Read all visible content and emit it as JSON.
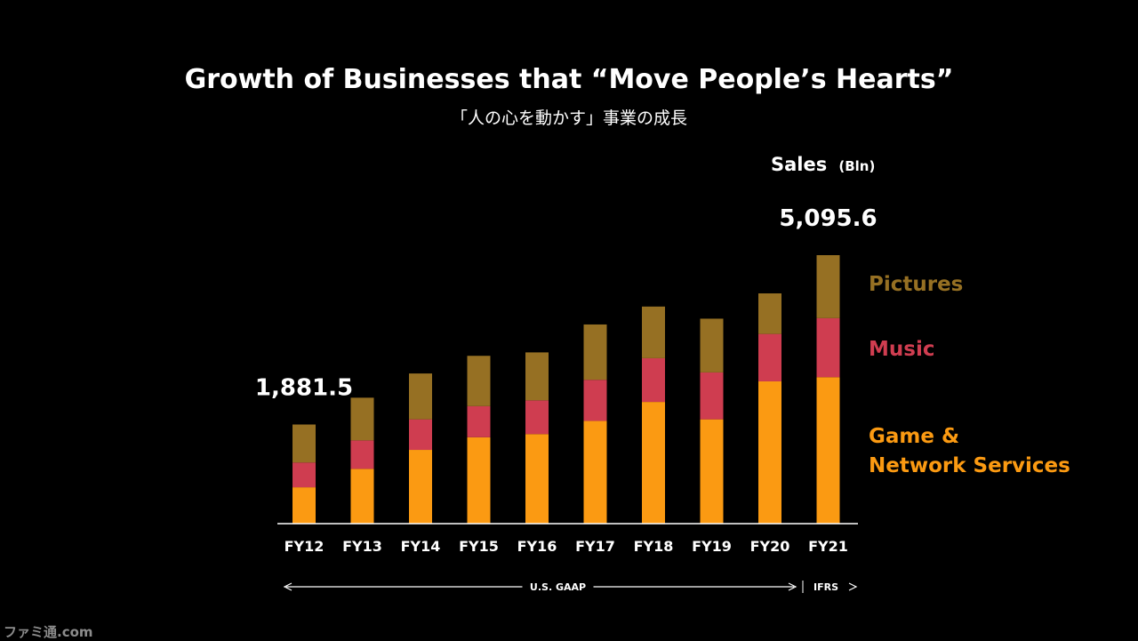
{
  "chart_data": {
    "type": "bar",
    "stacked": true,
    "title": "Growth of Businesses that “Move People’s Hearts”",
    "subtitle": "「人の心を動かす」事業の成長",
    "unit_label": "Sales",
    "unit_suffix": "(Bln)",
    "categories": [
      "FY12",
      "FY13",
      "FY14",
      "FY15",
      "FY16",
      "FY17",
      "FY18",
      "FY19",
      "FY20",
      "FY21"
    ],
    "series": [
      {
        "name": "Game & Network Services",
        "name_lines": [
          "Game &",
          "Network Services"
        ],
        "color": "#fb9a12",
        "values": [
          690,
          1040,
          1400,
          1640,
          1700,
          1950,
          2310,
          1980,
          2700,
          2780
        ]
      },
      {
        "name": "Music",
        "color": "#cf3d50",
        "values": [
          470,
          540,
          580,
          590,
          640,
          780,
          830,
          890,
          900,
          1120
        ]
      },
      {
        "name": "Pictures",
        "color": "#967023",
        "values": [
          721.5,
          810,
          870,
          955,
          910,
          1050,
          980,
          1020,
          770,
          1195.6
        ]
      }
    ],
    "totals_labels": [
      {
        "category": "FY12",
        "text": "1,881.5"
      },
      {
        "category": "FY21",
        "text": "5,095.6"
      }
    ],
    "ylim": [
      0,
      5200
    ],
    "grid": false,
    "legend": "right",
    "periods": [
      {
        "label": "U.S. GAAP",
        "from": "FY12",
        "to": "FY20"
      },
      {
        "label": "IFRS",
        "from": "FY21",
        "to": "FY21"
      }
    ]
  },
  "watermark": "ファミ通.com"
}
